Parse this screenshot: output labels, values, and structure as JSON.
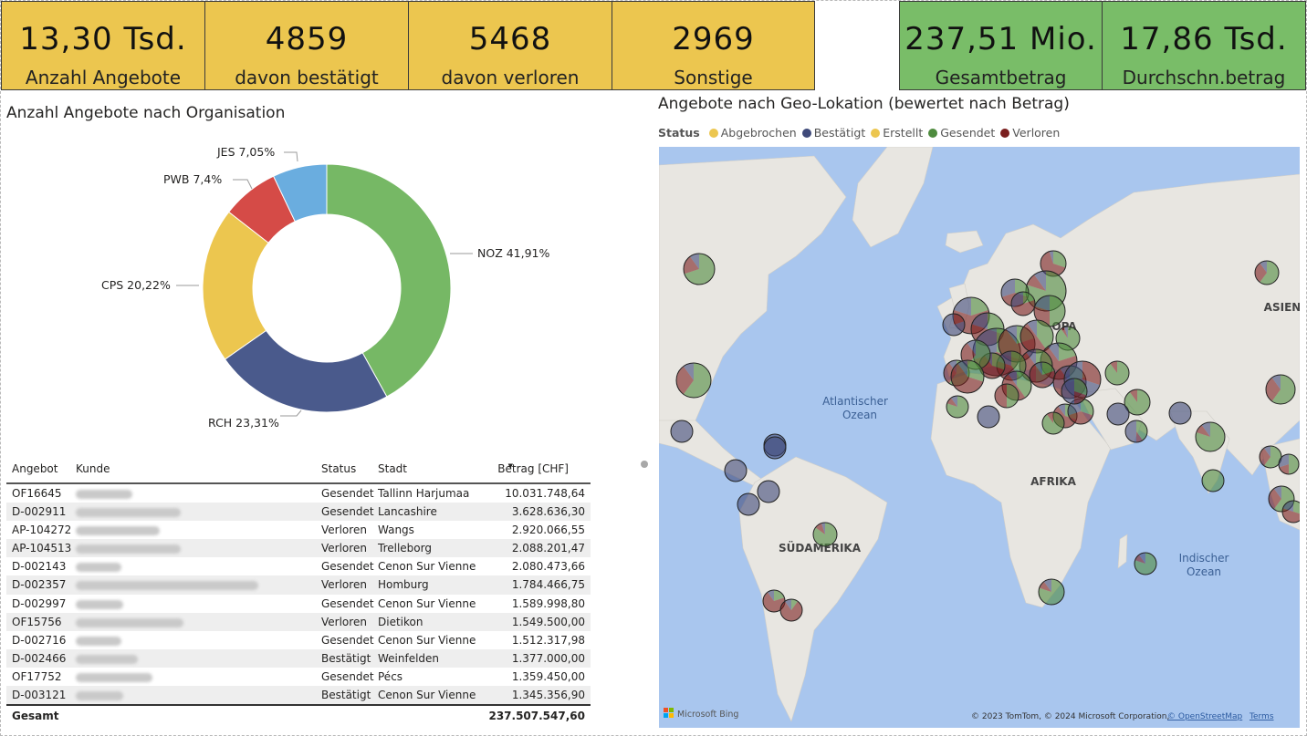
{
  "kpis": [
    {
      "value": "13,30 Tsd.",
      "label": "Anzahl Angebote"
    },
    {
      "value": "4859",
      "label": "davon bestätigt"
    },
    {
      "value": "5468",
      "label": "davon verloren"
    },
    {
      "value": "2969",
      "label": "Sonstige"
    },
    {
      "value": "237,51 Mio.",
      "label": "Gesamtbetrag"
    },
    {
      "value": "17,86 Tsd.",
      "label": "Durchschn.betrag"
    }
  ],
  "colors": {
    "kpi_yellow": "#ecc64f",
    "kpi_green": "#79bd68",
    "noz": "#76b865",
    "rch": "#4a5a8c",
    "cps": "#ecc64f",
    "pwb": "#d54b47",
    "jes": "#6aaddf"
  },
  "donut": {
    "title": "Anzahl Angebote nach Organisation",
    "labels": [
      "NOZ 41,91%",
      "RCH 23,31%",
      "CPS 20,22%",
      "PWB 7,4%",
      "JES 7,05%"
    ]
  },
  "chart_data": {
    "type": "pie",
    "title": "Anzahl Angebote nach Organisation",
    "categories": [
      "NOZ",
      "RCH",
      "CPS",
      "PWB",
      "JES"
    ],
    "values": [
      41.91,
      23.31,
      20.22,
      7.4,
      7.05
    ],
    "unit": "%"
  },
  "table": {
    "headers": [
      "Angebot",
      "Kunde",
      "Status",
      "Stadt",
      "Betrag [CHF]"
    ],
    "rows": [
      [
        "OF16645",
        "",
        "Gesendet",
        "Tallinn Harjumaa",
        "10.031.748,64"
      ],
      [
        "D-002911",
        "",
        "Gesendet",
        "Lancashire",
        "3.628.636,30"
      ],
      [
        "AP-104272",
        "",
        "Verloren",
        "Wangs",
        "2.920.066,55"
      ],
      [
        "AP-104513",
        "",
        "Verloren",
        "Trelleborg",
        "2.088.201,47"
      ],
      [
        "D-002143",
        "",
        "Gesendet",
        "Cenon Sur Vienne",
        "2.080.473,66"
      ],
      [
        "D-002357",
        "",
        "Verloren",
        "Homburg",
        "1.784.466,75"
      ],
      [
        "D-002997",
        "",
        "Gesendet",
        "Cenon Sur Vienne",
        "1.589.998,80"
      ],
      [
        "OF15756",
        "",
        "Verloren",
        "Dietikon",
        "1.549.500,00"
      ],
      [
        "D-002716",
        "",
        "Gesendet",
        "Cenon Sur Vienne",
        "1.512.317,98"
      ],
      [
        "D-002466",
        "",
        "Bestätigt",
        "Weinfelden",
        "1.377.000,00"
      ],
      [
        "OF17752",
        "",
        "Gesendet",
        "Pécs",
        "1.359.450,00"
      ],
      [
        "D-003121",
        "",
        "Bestätigt",
        "Cenon Sur Vienne",
        "1.345.356,90"
      ]
    ],
    "total_label": "Gesamt",
    "total_value": "237.507.547,60"
  },
  "map": {
    "title": "Angebote nach Geo-Lokation (bewertet nach Betrag)",
    "legend_title": "Status",
    "legend": [
      {
        "label": "Abgebrochen",
        "color": "#ecc64f"
      },
      {
        "label": "Bestätigt",
        "color": "#3f4a7a"
      },
      {
        "label": "Erstellt",
        "color": "#ecc64f"
      },
      {
        "label": "Gesendet",
        "color": "#4e8b3e"
      },
      {
        "label": "Verloren",
        "color": "#7a1e1e"
      }
    ],
    "labels": {
      "atlantic": "Atlantischer",
      "atlantic2": "Ozean",
      "africa": "AFRIKA",
      "southamerica": "SÜDAMERIKA",
      "asia": "ASIEN",
      "europe": "OPA",
      "indian": "Indischer",
      "indian2": "Ozean"
    },
    "provider": "Microsoft Bing",
    "copyright": "© 2023 TomTom, © 2024 Microsoft Corporation,",
    "osm": "© OpenStreetMap",
    "terms": "Terms"
  }
}
